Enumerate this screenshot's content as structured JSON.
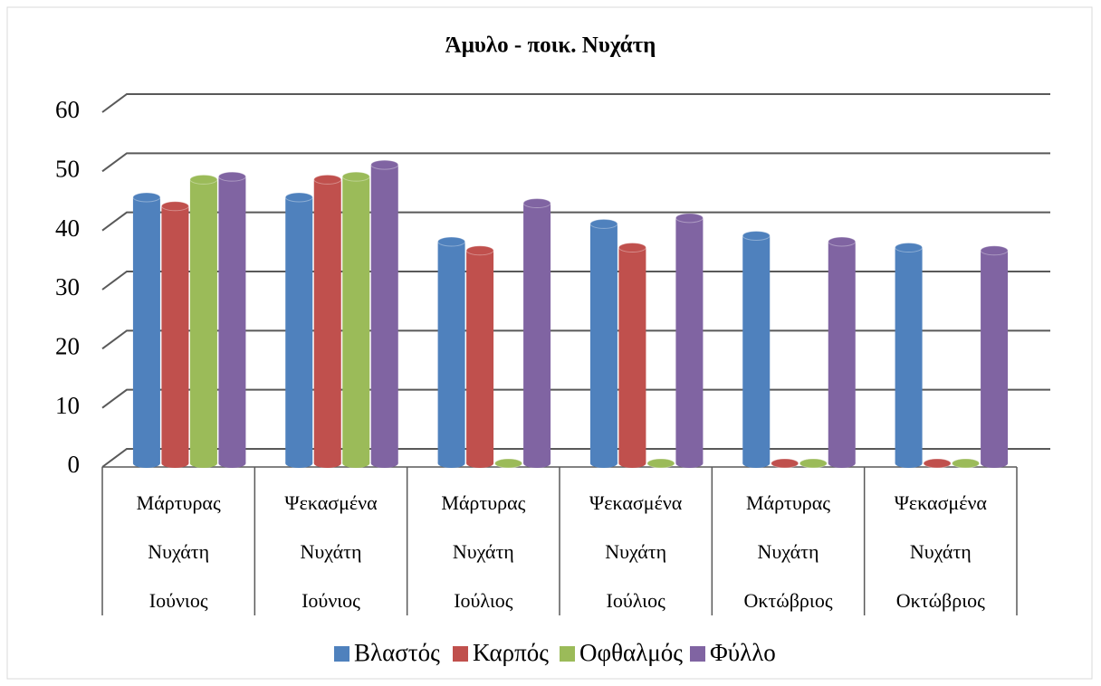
{
  "chart_data": {
    "type": "bar3d",
    "title": "Άμυλο - ποικ. Νυχάτη",
    "categories": [
      [
        "Μάρτυρας",
        "Νυχάτη",
        "Ιούνιος"
      ],
      [
        "Ψεκασμένα",
        "Νυχάτη",
        "Ιούνιος"
      ],
      [
        "Μάρτυρας",
        "Νυχάτη",
        "Ιούλιος"
      ],
      [
        "Ψεκασμένα",
        "Νυχάτη",
        "Ιούλιος"
      ],
      [
        "Μάρτυρας",
        "Νυχάτη",
        "Οκτώβριος"
      ],
      [
        "Ψεκασμένα",
        "Νυχάτη",
        "Οκτώβριος"
      ]
    ],
    "series": [
      {
        "name": "Βλαστός",
        "color": "#4f81bd",
        "values": [
          45,
          45,
          37.5,
          40.5,
          38.5,
          36.5
        ]
      },
      {
        "name": "Καρπός",
        "color": "#c0504d",
        "values": [
          43.5,
          48,
          36,
          36.5,
          0,
          0
        ]
      },
      {
        "name": "Οφθαλμός",
        "color": "#9bbb59",
        "values": [
          48,
          48.5,
          0,
          0,
          0,
          0
        ]
      },
      {
        "name": "Φύλλο",
        "color": "#8064a2",
        "values": [
          48.5,
          50.5,
          44,
          41.5,
          37.5,
          36
        ]
      }
    ],
    "ylim": [
      0,
      60
    ],
    "yticks": [
      0,
      10,
      20,
      30,
      40,
      50,
      60
    ],
    "grid": true,
    "legend": "bottom"
  }
}
